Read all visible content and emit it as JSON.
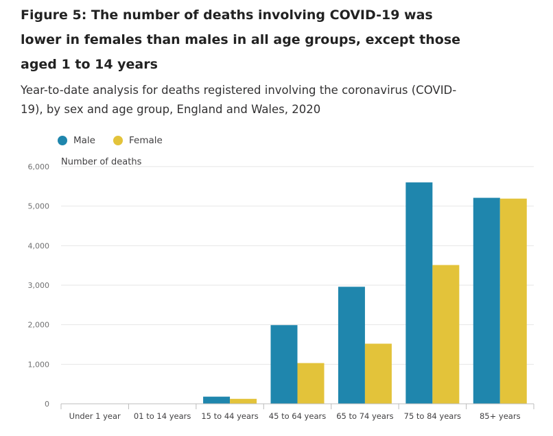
{
  "title": "Figure 5: The number of deaths involving COVID-19 was lower in females than males in all age groups, except those aged 1 to 14 years",
  "subtitle": "Year-to-date analysis for deaths registered involving the coronavirus (COVID-19), by sex and age group, England and Wales, 2020",
  "colors": {
    "male": "#1f86ad",
    "female": "#e3c33a",
    "grid": "#e6e6e6",
    "axis": "#bcbcbc"
  },
  "chart_data": {
    "type": "bar",
    "categories": [
      "Under 1 year",
      "01 to 14 years",
      "15 to 44 years",
      "45 to 64 years",
      "65 to 74 years",
      "75 to 84 years",
      "85+ years"
    ],
    "series": [
      {
        "name": "Male",
        "values": [
          2,
          4,
          180,
          1990,
          2960,
          5600,
          5210
        ]
      },
      {
        "name": "Female",
        "values": [
          1,
          5,
          125,
          1030,
          1520,
          3510,
          5190
        ]
      }
    ],
    "ylabel": "Number of deaths",
    "ylim": [
      0,
      6000
    ],
    "yticks": [
      "0",
      "1,000",
      "2,000",
      "3,000",
      "4,000",
      "5,000",
      "6,000"
    ],
    "grid": true,
    "legend_position": "top-left"
  }
}
